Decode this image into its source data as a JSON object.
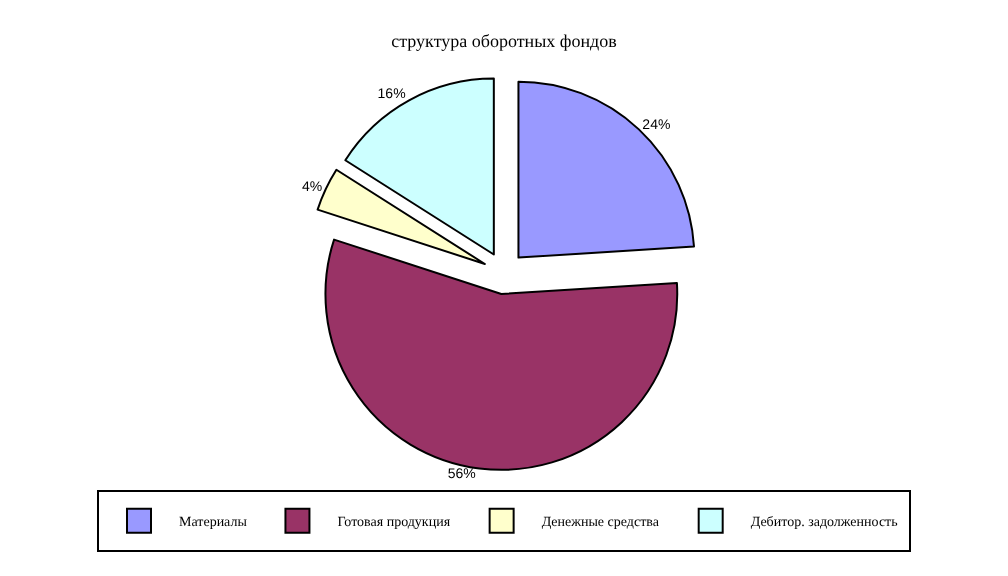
{
  "chart_data": {
    "type": "pie",
    "title": "структура оборотных фондов",
    "categories": [
      "Материалы",
      "Готовая продукция",
      "Денежные средства",
      "Дебитор. задолженность"
    ],
    "values": [
      24,
      56,
      4,
      16
    ],
    "value_labels": [
      "24%",
      "56%",
      "4%",
      "16%"
    ],
    "colors": [
      "#9999ff",
      "#993366",
      "#ffffcc",
      "#ccffff"
    ],
    "legend": "bottom"
  }
}
